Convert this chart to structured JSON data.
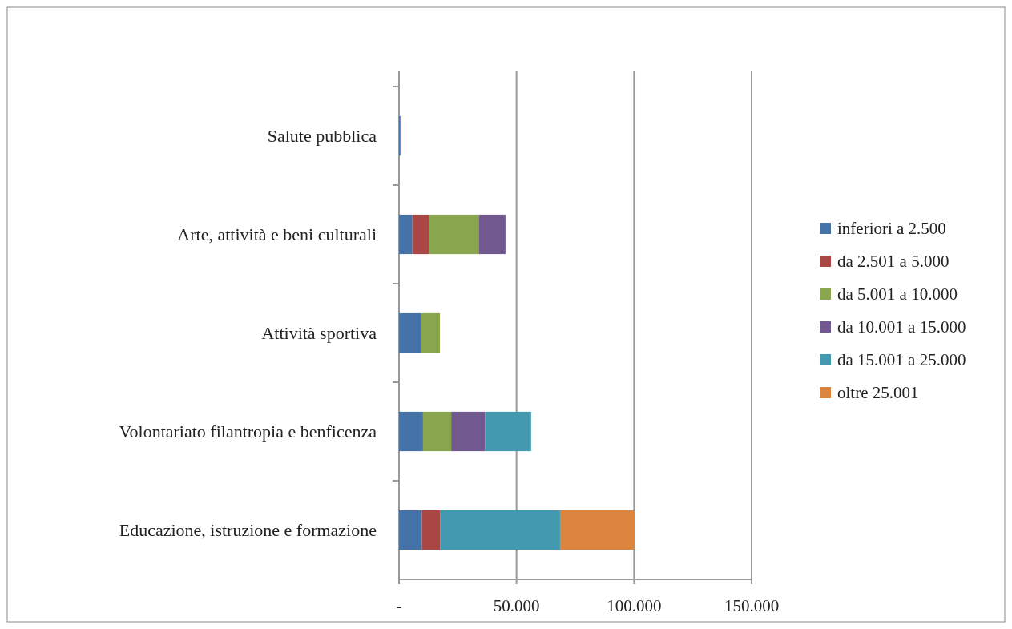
{
  "chart_data": {
    "type": "bar",
    "orientation": "horizontal",
    "stacked": true,
    "categories": [
      "Salute pubblica",
      "Arte, attività e beni culturali",
      "Attività sportiva",
      "Volontariato filantropia e benficenza",
      "Educazione, istruzione e formazione"
    ],
    "series": [
      {
        "name": "inferiori a 2.500",
        "color": "#4572a7",
        "values": [
          500,
          5700,
          9300,
          10200,
          9700
        ]
      },
      {
        "name": "da 2.501 a 5.000",
        "color": "#aa4643",
        "values": [
          null,
          7200,
          null,
          null,
          7900
        ]
      },
      {
        "name": "da 5.001 a 10.000",
        "color": "#89a54e",
        "values": [
          null,
          21200,
          8100,
          12000,
          null
        ]
      },
      {
        "name": "da 10.001 a 15.000",
        "color": "#71588f",
        "values": [
          300,
          11200,
          null,
          14400,
          null
        ]
      },
      {
        "name": "da 15.001 a 25.000",
        "color": "#4198af",
        "values": [
          null,
          null,
          null,
          19600,
          50900
        ]
      },
      {
        "name": "oltre 25.001",
        "color": "#db843d",
        "values": [
          null,
          null,
          null,
          null,
          31600
        ]
      }
    ],
    "xlim": [
      0,
      150000
    ],
    "xticks": [
      {
        "value": 0,
        "label": "-"
      },
      {
        "value": 50000,
        "label": "50.000"
      },
      {
        "value": 100000,
        "label": "100.000"
      },
      {
        "value": 150000,
        "label": "150.000"
      }
    ],
    "grid": "x",
    "legend": "right"
  }
}
